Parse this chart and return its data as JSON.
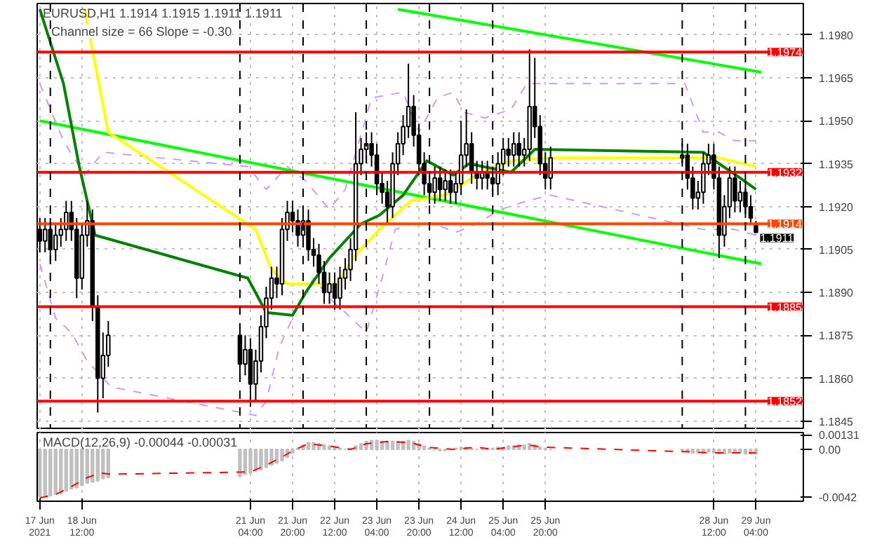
{
  "chart_data": [
    {
      "type": "candlestick",
      "title": "EURUSD,H1  1.1914 1.1915 1.1911 1.1911",
      "subtitle": "Channel size = 66 Slope = -0.30",
      "xlim": [
        "2021-06-17T19:00",
        "2021-06-29T22:00"
      ],
      "ylim": [
        1.1842,
        1.1991
      ],
      "tick_labels": "y",
      "grid": true,
      "xticks": [
        {
          "value": "2021-06-17T20:00",
          "label": null
        },
        {
          "value": "2021-06-18T12:00",
          "label": null
        },
        {
          "value": "2021-06-21T04:00",
          "label": null
        },
        {
          "value": "2021-06-21T20:00",
          "label": null
        },
        {
          "value": "2021-06-22T12:00",
          "label": null
        },
        {
          "value": "2021-06-23T04:00",
          "label": null
        },
        {
          "value": "2021-06-23T20:00",
          "label": null
        },
        {
          "value": "2021-06-24T12:00",
          "label": null
        },
        {
          "value": "2021-06-25T04:00",
          "label": null
        },
        {
          "value": "2021-06-25T20:00",
          "label": null
        },
        {
          "value": "2021-06-28T12:00",
          "label": null
        },
        {
          "value": "2021-06-29T04:00",
          "label": null
        }
      ],
      "yticks": [
        {
          "value": 1.198,
          "label": "1.1980"
        },
        {
          "value": 1.1965,
          "label": "1.1965"
        },
        {
          "value": 1.195,
          "label": "1.1950"
        },
        {
          "value": 1.1935,
          "label": "1.1935"
        },
        {
          "value": 1.192,
          "label": "1.1920"
        },
        {
          "value": 1.1905,
          "label": "1.1905"
        },
        {
          "value": 1.189,
          "label": "1.1890"
        },
        {
          "value": 1.1875,
          "label": "1.1875"
        },
        {
          "value": 1.186,
          "label": "1.1860"
        },
        {
          "value": 1.1845,
          "label": "1.1845"
        }
      ],
      "ref_lines": [
        {
          "axis": "y",
          "value": 1.1974,
          "label": "1.1974",
          "color": "#ff0000"
        },
        {
          "axis": "y",
          "value": 1.1932,
          "label": "1.1932",
          "color": "#ff0000"
        },
        {
          "axis": "y",
          "value": 1.1885,
          "label": "1.1885",
          "color": "#ff0000"
        },
        {
          "axis": "y",
          "value": 1.1852,
          "label": "1.1852",
          "color": "#ff0000"
        },
        {
          "axis": "y",
          "value": 1.1914,
          "label": "1.1914",
          "color": "#ff4500"
        },
        {
          "axis": "x",
          "value": "2021-06-18T00:00",
          "color": "#000000",
          "line_style": "dashed"
        },
        {
          "axis": "x",
          "value": "2021-06-21T00:00",
          "color": "#000000",
          "line_style": "dashed"
        },
        {
          "axis": "x",
          "value": "2021-06-22T00:00",
          "color": "#000000",
          "line_style": "dashed"
        },
        {
          "axis": "x",
          "value": "2021-06-23T00:00",
          "color": "#000000",
          "line_style": "dashed"
        },
        {
          "axis": "x",
          "value": "2021-06-24T00:00",
          "color": "#000000",
          "line_style": "dashed"
        },
        {
          "axis": "x",
          "value": "2021-06-25T00:00",
          "color": "#000000",
          "line_style": "dashed"
        },
        {
          "axis": "x",
          "value": "2021-06-28T00:00",
          "color": "#000000",
          "line_style": "dashed"
        },
        {
          "axis": "x",
          "value": "2021-06-29T00:00",
          "color": "#000000",
          "line_style": "dashed"
        }
      ],
      "annotations": [
        {
          "text": "1.1911",
          "x": "2021-06-29T04:00",
          "y": 1.1911
        }
      ],
      "x": [
        "2021-06-17T20:00",
        "2021-06-17T22:00",
        "2021-06-18T00:00",
        "2021-06-18T02:00",
        "2021-06-18T04:00",
        "2021-06-18T06:00",
        "2021-06-18T08:00",
        "2021-06-18T10:00",
        "2021-06-18T12:00",
        "2021-06-18T14:00",
        "2021-06-18T16:00",
        "2021-06-18T18:00",
        "2021-06-18T20:00",
        "2021-06-18T22:00",
        "2021-06-21T00:00",
        "2021-06-21T02:00",
        "2021-06-21T04:00",
        "2021-06-21T06:00",
        "2021-06-21T08:00",
        "2021-06-21T10:00",
        "2021-06-21T12:00",
        "2021-06-21T14:00",
        "2021-06-21T16:00",
        "2021-06-21T18:00",
        "2021-06-21T20:00",
        "2021-06-21T22:00",
        "2021-06-22T00:00",
        "2021-06-22T02:00",
        "2021-06-22T04:00",
        "2021-06-22T06:00",
        "2021-06-22T08:00",
        "2021-06-22T10:00",
        "2021-06-22T12:00",
        "2021-06-22T14:00",
        "2021-06-22T16:00",
        "2021-06-22T18:00",
        "2021-06-22T20:00",
        "2021-06-22T22:00",
        "2021-06-23T00:00",
        "2021-06-23T02:00",
        "2021-06-23T04:00",
        "2021-06-23T06:00",
        "2021-06-23T08:00",
        "2021-06-23T10:00",
        "2021-06-23T12:00",
        "2021-06-23T14:00",
        "2021-06-23T16:00",
        "2021-06-23T18:00",
        "2021-06-23T20:00",
        "2021-06-23T22:00",
        "2021-06-24T00:00",
        "2021-06-24T02:00",
        "2021-06-24T04:00",
        "2021-06-24T06:00",
        "2021-06-24T08:00",
        "2021-06-24T10:00",
        "2021-06-24T12:00",
        "2021-06-24T14:00",
        "2021-06-24T16:00",
        "2021-06-24T18:00",
        "2021-06-24T20:00",
        "2021-06-24T22:00",
        "2021-06-25T00:00",
        "2021-06-25T02:00",
        "2021-06-25T04:00",
        "2021-06-25T06:00",
        "2021-06-25T08:00",
        "2021-06-25T10:00",
        "2021-06-25T12:00",
        "2021-06-25T14:00",
        "2021-06-25T16:00",
        "2021-06-25T18:00",
        "2021-06-25T20:00",
        "2021-06-25T22:00",
        "2021-06-28T00:00",
        "2021-06-28T02:00",
        "2021-06-28T04:00",
        "2021-06-28T06:00",
        "2021-06-28T08:00",
        "2021-06-28T10:00",
        "2021-06-28T12:00",
        "2021-06-28T14:00",
        "2021-06-28T16:00",
        "2021-06-28T18:00",
        "2021-06-28T20:00",
        "2021-06-28T22:00",
        "2021-06-29T00:00",
        "2021-06-29T02:00",
        "2021-06-29T04:00"
      ],
      "series": [
        {
          "type": "line",
          "color": "#cc99ff",
          "line_style": "dashed",
          "x": [
            "2021-06-17T20:00",
            "2021-06-18T05:00",
            "2021-06-18T13:00",
            "2021-06-18T20:00",
            "2021-06-21T03:00",
            "2021-06-21T10:00",
            "2021-06-21T18:00",
            "2021-06-22T01:00",
            "2021-06-22T10:00",
            "2021-06-22T16:00",
            "2021-06-23T02:00",
            "2021-06-23T14:00",
            "2021-06-23T20:00",
            "2021-06-24T03:00",
            "2021-06-24T09:00",
            "2021-06-24T13:00",
            "2021-06-24T21:00",
            "2021-06-25T07:00",
            "2021-06-25T13:00",
            "2021-06-25T19:00",
            "2021-06-28T01:00",
            "2021-06-28T08:00",
            "2021-06-28T14:00",
            "2021-06-28T20:00",
            "2021-06-29T04:00"
          ],
          "values": [
            1.1963,
            1.1943,
            1.1931,
            1.1939,
            1.1934,
            1.1926,
            1.1934,
            1.1929,
            1.1919,
            1.1926,
            1.1958,
            1.196,
            1.1946,
            1.1958,
            1.196,
            1.1953,
            1.1951,
            1.1954,
            1.1963,
            1.1963,
            1.1963,
            1.1946,
            1.1946,
            1.1943,
            1.1943
          ]
        },
        {
          "type": "line",
          "color": "#cc99ff",
          "line_style": "dashed",
          "x": [
            "2021-06-17T20:00",
            "2021-06-18T02:00",
            "2021-06-18T08:00",
            "2021-06-18T14:00",
            "2021-06-18T23:00",
            "2021-06-21T06:00",
            "2021-06-21T10:00",
            "2021-06-21T15:00",
            "2021-06-21T21:00",
            "2021-06-22T04:00",
            "2021-06-22T10:00",
            "2021-06-22T16:00",
            "2021-06-23T00:00",
            "2021-06-23T06:00",
            "2021-06-23T11:00",
            "2021-06-23T17:00",
            "2021-06-24T02:00",
            "2021-06-24T10:00",
            "2021-06-24T18:00",
            "2021-06-25T03:00",
            "2021-06-25T13:00",
            "2021-06-25T22:00",
            "2021-06-28T08:00",
            "2021-06-28T20:00",
            "2021-06-29T04:00"
          ],
          "values": [
            1.19,
            1.1881,
            1.1876,
            1.1866,
            1.1857,
            1.1847,
            1.1852,
            1.1871,
            1.1883,
            1.1895,
            1.1888,
            1.1883,
            1.1876,
            1.1895,
            1.1912,
            1.1914,
            1.1914,
            1.1911,
            1.1914,
            1.1919,
            1.1922,
            1.1924,
            1.1912,
            1.1912,
            1.191
          ]
        },
        {
          "type": "line",
          "color": "#00ff00",
          "x": [
            "2021-06-23T12:00",
            "2021-06-29T06:00"
          ],
          "values": [
            1.1989,
            1.1967
          ]
        },
        {
          "type": "line",
          "color": "#00ff00",
          "x": [
            "2021-06-17T20:00",
            "2021-06-29T06:00"
          ],
          "values": [
            1.195,
            1.19
          ]
        },
        {
          "type": "line",
          "color": "#ffff00",
          "x": [
            "2021-06-18T13:00",
            "2021-06-18T22:00",
            "2021-06-21T06:00",
            "2021-06-21T12:00",
            "2021-06-21T18:00",
            "2021-06-22T04:00",
            "2021-06-22T13:00",
            "2021-06-22T19:00",
            "2021-06-23T05:00",
            "2021-06-23T17:00",
            "2021-06-24T06:00",
            "2021-06-24T18:00",
            "2021-06-25T07:00",
            "2021-06-25T22:00",
            "2021-06-28T14:00",
            "2021-06-29T04:00"
          ],
          "values": [
            1.1989,
            1.1946,
            1.1912,
            1.1898,
            1.1893,
            1.1893,
            1.1893,
            1.1902,
            1.1912,
            1.1922,
            1.1924,
            1.1931,
            1.1936,
            1.1937,
            1.1937,
            1.1934
          ]
        },
        {
          "type": "line",
          "color": "#008000",
          "x": [
            "2021-06-17T20:00",
            "2021-06-18T05:00",
            "2021-06-18T11:00",
            "2021-06-18T17:00",
            "2021-06-21T03:00",
            "2021-06-21T10:00",
            "2021-06-21T20:00",
            "2021-06-22T01:00",
            "2021-06-22T10:00",
            "2021-06-22T22:00",
            "2021-06-23T05:00",
            "2021-06-23T14:00",
            "2021-06-23T23:00",
            "2021-06-24T09:00",
            "2021-06-24T15:00",
            "2021-06-25T07:00",
            "2021-06-25T16:00",
            "2021-06-28T08:00",
            "2021-06-28T14:00",
            "2021-06-28T22:00",
            "2021-06-29T04:00"
          ],
          "values": [
            1.1989,
            1.1963,
            1.1934,
            1.191,
            1.1895,
            1.1883,
            1.1882,
            1.189,
            1.1902,
            1.1914,
            1.1917,
            1.1924,
            1.1936,
            1.1931,
            1.1935,
            1.1932,
            1.194,
            1.1939,
            1.1935,
            1.193,
            1.1926
          ]
        },
        {
          "color": "#000000",
          "ohlc": [
            [
              1.1912,
              1.1916,
              1.1904,
              1.1908
            ],
            [
              1.1908,
              1.1916,
              1.1904,
              1.1912
            ],
            [
              1.1912,
              1.1916,
              1.1901,
              1.1905
            ],
            [
              1.1905,
              1.1914,
              1.1901,
              1.191
            ],
            [
              1.191,
              1.1916,
              1.1906,
              1.1912
            ],
            [
              1.1912,
              1.1922,
              1.1908,
              1.1918
            ],
            [
              1.1918,
              1.1922,
              1.1908,
              1.1912
            ],
            [
              1.1912,
              1.1916,
              1.1888,
              1.1895
            ],
            [
              1.1895,
              1.1914,
              1.1891,
              1.191
            ],
            [
              1.191,
              1.1922,
              1.1906,
              1.1915
            ],
            [
              1.1915,
              1.1919,
              1.188,
              1.1885
            ],
            [
              1.1885,
              1.1889,
              1.1848,
              1.186
            ],
            [
              1.186,
              1.1876,
              1.1853,
              1.1868
            ],
            [
              1.1868,
              1.188,
              1.1864,
              1.1875
            ],
            [
              1.1875,
              1.1879,
              1.186,
              1.1865
            ],
            [
              1.1865,
              1.1875,
              1.1861,
              1.187
            ],
            [
              1.187,
              1.1874,
              1.185,
              1.1858
            ],
            [
              1.1858,
              1.187,
              1.1852,
              1.1866
            ],
            [
              1.1866,
              1.1882,
              1.1862,
              1.1878
            ],
            [
              1.1878,
              1.1892,
              1.1874,
              1.1888
            ],
            [
              1.1888,
              1.1899,
              1.1884,
              1.1895
            ],
            [
              1.1895,
              1.1899,
              1.1888,
              1.1893
            ],
            [
              1.1893,
              1.1916,
              1.1889,
              1.1912
            ],
            [
              1.1912,
              1.1922,
              1.1908,
              1.1918
            ],
            [
              1.1918,
              1.1922,
              1.1911,
              1.1915
            ],
            [
              1.1915,
              1.1919,
              1.1906,
              1.191
            ],
            [
              1.191,
              1.1919,
              1.1906,
              1.1915
            ],
            [
              1.1915,
              1.1919,
              1.1901,
              1.1905
            ],
            [
              1.1905,
              1.1909,
              1.1899,
              1.1903
            ],
            [
              1.1903,
              1.1907,
              1.1893,
              1.1897
            ],
            [
              1.1897,
              1.1901,
              1.1886,
              1.189
            ],
            [
              1.189,
              1.1897,
              1.1886,
              1.1893
            ],
            [
              1.1893,
              1.1897,
              1.1884,
              1.1888
            ],
            [
              1.1888,
              1.1899,
              1.1884,
              1.1895
            ],
            [
              1.1895,
              1.1902,
              1.1891,
              1.1898
            ],
            [
              1.1898,
              1.1909,
              1.1894,
              1.1905
            ],
            [
              1.1905,
              1.1953,
              1.1901,
              1.1935
            ],
            [
              1.1935,
              1.1944,
              1.1931,
              1.194
            ],
            [
              1.194,
              1.1946,
              1.1936,
              1.1942
            ],
            [
              1.1942,
              1.1946,
              1.1934,
              1.1938
            ],
            [
              1.1938,
              1.1942,
              1.1924,
              1.1928
            ],
            [
              1.1928,
              1.1932,
              1.1921,
              1.1925
            ],
            [
              1.1925,
              1.1929,
              1.1914,
              1.192
            ],
            [
              1.192,
              1.1939,
              1.1916,
              1.1935
            ],
            [
              1.1935,
              1.1946,
              1.1931,
              1.1942
            ],
            [
              1.1942,
              1.1952,
              1.1938,
              1.1948
            ],
            [
              1.1948,
              1.197,
              1.1944,
              1.1955
            ],
            [
              1.1955,
              1.1959,
              1.1941,
              1.1945
            ],
            [
              1.1945,
              1.1949,
              1.1931,
              1.1935
            ],
            [
              1.1935,
              1.1939,
              1.1924,
              1.1928
            ],
            [
              1.1928,
              1.1932,
              1.1921,
              1.1925
            ],
            [
              1.1925,
              1.1934,
              1.1921,
              1.193
            ],
            [
              1.193,
              1.1934,
              1.1922,
              1.1926
            ],
            [
              1.1926,
              1.1933,
              1.1922,
              1.1929
            ],
            [
              1.1929,
              1.1933,
              1.1921,
              1.1925
            ],
            [
              1.1925,
              1.1932,
              1.1921,
              1.1928
            ],
            [
              1.1928,
              1.195,
              1.1924,
              1.1938
            ],
            [
              1.1938,
              1.1954,
              1.1934,
              1.1942
            ],
            [
              1.1942,
              1.1946,
              1.1928,
              1.1932
            ],
            [
              1.1932,
              1.1936,
              1.1926,
              1.193
            ],
            [
              1.193,
              1.1936,
              1.1926,
              1.1932
            ],
            [
              1.1932,
              1.1936,
              1.1926,
              1.193
            ],
            [
              1.193,
              1.1934,
              1.1924,
              1.1928
            ],
            [
              1.1928,
              1.1939,
              1.1924,
              1.1935
            ],
            [
              1.1935,
              1.1944,
              1.1931,
              1.194
            ],
            [
              1.194,
              1.1944,
              1.1934,
              1.1938
            ],
            [
              1.1938,
              1.1946,
              1.1934,
              1.1942
            ],
            [
              1.1942,
              1.1946,
              1.1934,
              1.1938
            ],
            [
              1.1938,
              1.1944,
              1.1934,
              1.194
            ],
            [
              1.194,
              1.1975,
              1.1936,
              1.1955
            ],
            [
              1.1955,
              1.1972,
              1.1944,
              1.1948
            ],
            [
              1.1948,
              1.1952,
              1.1931,
              1.1935
            ],
            [
              1.1935,
              1.1939,
              1.1926,
              1.193
            ],
            [
              1.193,
              1.1941,
              1.1926,
              1.1937
            ],
            [
              1.1937,
              1.1942,
              1.1934,
              1.1938
            ],
            [
              1.1938,
              1.1942,
              1.1926,
              1.193
            ],
            [
              1.193,
              1.1934,
              1.1919,
              1.1923
            ],
            [
              1.1923,
              1.1929,
              1.1919,
              1.1925
            ],
            [
              1.1925,
              1.1939,
              1.1921,
              1.1935
            ],
            [
              1.1935,
              1.1942,
              1.1931,
              1.1938
            ],
            [
              1.1938,
              1.1942,
              1.1926,
              1.193
            ],
            [
              1.193,
              1.1934,
              1.1902,
              1.191
            ],
            [
              1.191,
              1.1924,
              1.1906,
              1.192
            ],
            [
              1.192,
              1.1934,
              1.1916,
              1.193
            ],
            [
              1.193,
              1.1934,
              1.1918,
              1.1922
            ],
            [
              1.1922,
              1.1929,
              1.1918,
              1.1925
            ],
            [
              1.1925,
              1.1929,
              1.1916,
              1.192
            ],
            [
              1.192,
              1.1924,
              1.1914,
              1.1916
            ],
            [
              1.1914,
              1.1915,
              1.1911,
              1.1911
            ]
          ]
        }
      ]
    },
    {
      "type": "bar",
      "title": "MACD(12,26,9) -0.00044 -0.00031",
      "xlim": [
        "2021-06-17T19:00",
        "2021-06-29T22:00"
      ],
      "ylim": [
        -0.0046,
        0.0015
      ],
      "grid": "x",
      "xticks": [
        {
          "value": "2021-06-17T20:00",
          "label": "17 Jun 2021"
        },
        {
          "value": "2021-06-18T12:00",
          "label": "18 Jun 12:00"
        },
        {
          "value": "2021-06-21T04:00",
          "label": "21 Jun 04:00"
        },
        {
          "value": "2021-06-21T20:00",
          "label": "21 Jun 20:00"
        },
        {
          "value": "2021-06-22T12:00",
          "label": "22 Jun 12:00"
        },
        {
          "value": "2021-06-23T04:00",
          "label": "23 Jun 04:00"
        },
        {
          "value": "2021-06-23T20:00",
          "label": "23 Jun 20:00"
        },
        {
          "value": "2021-06-24T12:00",
          "label": "24 Jun 12:00"
        },
        {
          "value": "2021-06-25T04:00",
          "label": "25 Jun 04:00"
        },
        {
          "value": "2021-06-25T20:00",
          "label": "25 Jun 20:00"
        },
        {
          "value": "2021-06-28T12:00",
          "label": "28 Jun 12:00"
        },
        {
          "value": "2021-06-29T04:00",
          "label": "29 Jun 04:00"
        }
      ],
      "yticks": [
        0.00131,
        {
          "value": 0,
          "label": "0.00"
        },
        -0.0042
      ],
      "x": [
        "2021-06-17T20:00",
        "2021-06-17T22:00",
        "2021-06-18T00:00",
        "2021-06-18T02:00",
        "2021-06-18T04:00",
        "2021-06-18T06:00",
        "2021-06-18T08:00",
        "2021-06-18T10:00",
        "2021-06-18T12:00",
        "2021-06-18T14:00",
        "2021-06-18T16:00",
        "2021-06-18T18:00",
        "2021-06-18T20:00",
        "2021-06-18T22:00",
        "2021-06-21T00:00",
        "2021-06-21T02:00",
        "2021-06-21T04:00",
        "2021-06-21T06:00",
        "2021-06-21T08:00",
        "2021-06-21T10:00",
        "2021-06-21T12:00",
        "2021-06-21T14:00",
        "2021-06-21T16:00",
        "2021-06-21T18:00",
        "2021-06-21T20:00",
        "2021-06-21T22:00",
        "2021-06-22T00:00",
        "2021-06-22T02:00",
        "2021-06-22T04:00",
        "2021-06-22T06:00",
        "2021-06-22T08:00",
        "2021-06-22T10:00",
        "2021-06-22T12:00",
        "2021-06-22T14:00",
        "2021-06-22T16:00",
        "2021-06-22T18:00",
        "2021-06-22T20:00",
        "2021-06-22T22:00",
        "2021-06-23T00:00",
        "2021-06-23T02:00",
        "2021-06-23T04:00",
        "2021-06-23T06:00",
        "2021-06-23T08:00",
        "2021-06-23T10:00",
        "2021-06-23T12:00",
        "2021-06-23T14:00",
        "2021-06-23T16:00",
        "2021-06-23T18:00",
        "2021-06-23T20:00",
        "2021-06-23T22:00",
        "2021-06-24T00:00",
        "2021-06-24T02:00",
        "2021-06-24T04:00",
        "2021-06-24T06:00",
        "2021-06-24T08:00",
        "2021-06-24T10:00",
        "2021-06-24T12:00",
        "2021-06-24T14:00",
        "2021-06-24T16:00",
        "2021-06-24T18:00",
        "2021-06-24T20:00",
        "2021-06-24T22:00",
        "2021-06-25T00:00",
        "2021-06-25T02:00",
        "2021-06-25T04:00",
        "2021-06-25T06:00",
        "2021-06-25T08:00",
        "2021-06-25T10:00",
        "2021-06-25T12:00",
        "2021-06-25T14:00",
        "2021-06-25T16:00",
        "2021-06-25T18:00",
        "2021-06-25T20:00",
        "2021-06-25T22:00",
        "2021-06-28T00:00",
        "2021-06-28T02:00",
        "2021-06-28T04:00",
        "2021-06-28T06:00",
        "2021-06-28T08:00",
        "2021-06-28T10:00",
        "2021-06-28T12:00",
        "2021-06-28T14:00",
        "2021-06-28T16:00",
        "2021-06-28T18:00",
        "2021-06-28T20:00",
        "2021-06-28T22:00",
        "2021-06-29T00:00",
        "2021-06-29T02:00",
        "2021-06-29T04:00"
      ],
      "series": [
        {
          "color": "#c0c0c0",
          "values": [
            -0.0042,
            -0.0041,
            -0.0041,
            -0.004,
            -0.0039,
            -0.0037,
            -0.0035,
            -0.0034,
            -0.0032,
            -0.003,
            -0.0029,
            -0.0028,
            -0.0026,
            -0.0025,
            -0.0024,
            -0.0022,
            -0.0021,
            -0.0019,
            -0.0018,
            -0.0016,
            -0.0014,
            -0.0012,
            -0.001,
            -0.0007,
            -0.0003,
            0.0001,
            0.0004,
            0.0006,
            0.0006,
            0.0005,
            0.0004,
            0.0003,
            0.0002,
            0.0001,
            0,
            0.0001,
            0.0003,
            0.0005,
            0.0007,
            0.0008,
            0.0008,
            0.0007,
            0.0007,
            0.0007,
            0.0007,
            0.0007,
            0.0008,
            0.0007,
            0.0005,
            0.0003,
            0.0001,
            0,
            -0.0001,
            -0.0001,
            0,
            0.0001,
            0.0002,
            0.0002,
            0.0001,
            0,
            0,
            0.0001,
            0.0001,
            0.0002,
            0.0002,
            0.0003,
            0.0003,
            0.0004,
            0.0004,
            0.0005,
            0.0004,
            0.0002,
            0.0001,
            0,
            -0.0001,
            -0.0002,
            -0.0003,
            -0.0003,
            -0.0003,
            -0.0002,
            -0.0003,
            -0.0004,
            -0.0004,
            -0.0003,
            -0.0003,
            -0.0003,
            -0.0004,
            -0.0004,
            -0.0004
          ]
        },
        {
          "type": "line",
          "color": "#ff0000",
          "line_style": "dashed",
          "x": [
            "2021-06-17T20:00",
            "2021-06-18T02:00",
            "2021-06-18T08:00",
            "2021-06-18T14:00",
            "2021-06-18T19:00",
            "2021-06-18T23:00",
            "2021-06-21T04:00",
            "2021-06-21T09:00",
            "2021-06-21T15:00",
            "2021-06-21T21:00",
            "2021-06-22T02:00",
            "2021-06-22T10:00",
            "2021-06-22T18:00",
            "2021-06-23T00:00",
            "2021-06-23T08:00",
            "2021-06-23T17:00",
            "2021-06-23T23:00",
            "2021-06-24T09:00",
            "2021-06-24T18:00",
            "2021-06-25T00:00",
            "2021-06-25T13:00",
            "2021-06-25T19:00",
            "2021-06-28T01:00",
            "2021-06-28T11:00",
            "2021-06-29T04:00"
          ],
          "values": [
            -0.0043,
            -0.004,
            -0.0033,
            -0.0025,
            -0.0021,
            -0.0022,
            -0.002,
            -0.0015,
            -0.0008,
            0,
            0.0005,
            0.0003,
            0,
            0.0005,
            0.0007,
            0.0006,
            0.0002,
            0,
            0.0002,
            0,
            0.0004,
            0.0002,
            -0.0002,
            -0.0003,
            -0.0003
          ]
        }
      ]
    }
  ]
}
